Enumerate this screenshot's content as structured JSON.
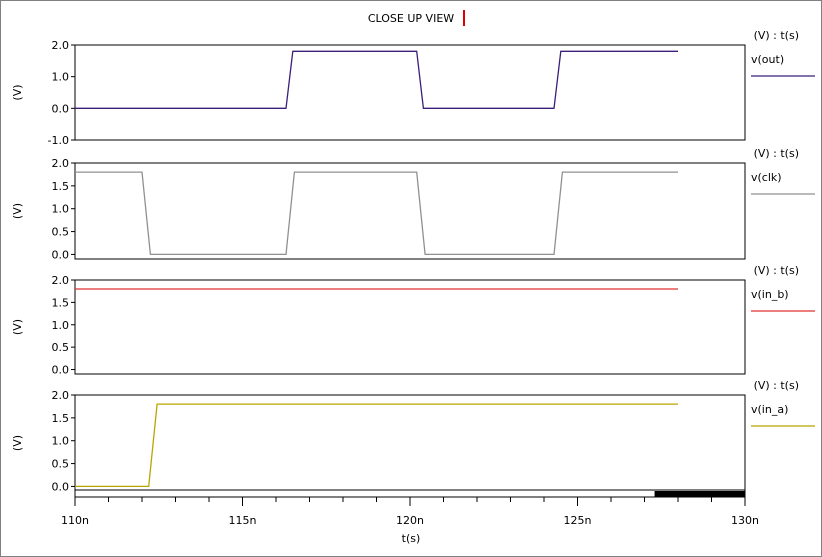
{
  "chart_data": {
    "type": "line",
    "title": "CLOSE UP VIEW",
    "xlabel": "t(s)",
    "x_ticks": [
      "110n",
      "115n",
      "120n",
      "125n",
      "130n"
    ],
    "x_tick_values": [
      110,
      115,
      120,
      125,
      130
    ],
    "xlim": [
      110,
      130
    ],
    "grid": false,
    "panels": [
      {
        "ylabel": "(V)",
        "unit_label": "(V) : t(s)",
        "series": [
          {
            "name": "v(out)",
            "color": "#3b1f7a",
            "x": [
              110,
              116.3,
              116.5,
              120.2,
              120.4,
              124.3,
              124.5,
              128
            ],
            "y": [
              0.0,
              0.0,
              1.8,
              1.8,
              0.0,
              0.0,
              1.8,
              1.8
            ]
          }
        ],
        "ylim": [
          -1.0,
          2.0
        ],
        "y_ticks": [
          -1.0,
          0.0,
          1.0,
          2.0
        ],
        "y_tick_labels": [
          "-1.0",
          "0.0",
          "1.0",
          "2.0"
        ]
      },
      {
        "ylabel": "(V)",
        "unit_label": "(V) : t(s)",
        "series": [
          {
            "name": "v(clk)",
            "color": "#909090",
            "x": [
              110,
              112,
              112.25,
              116.3,
              116.55,
              120.2,
              120.45,
              124.3,
              124.55,
              128
            ],
            "y": [
              1.8,
              1.8,
              0.0,
              0.0,
              1.8,
              1.8,
              0.0,
              0.0,
              1.8,
              1.8
            ]
          }
        ],
        "ylim": [
          -0.1,
          2.0
        ],
        "y_ticks": [
          0.0,
          0.5,
          1.0,
          1.5,
          2.0
        ],
        "y_tick_labels": [
          "0.0",
          "0.5",
          "1.0",
          "1.5",
          "2.0"
        ]
      },
      {
        "ylabel": "(V)",
        "unit_label": "(V) : t(s)",
        "series": [
          {
            "name": "v(in_b)",
            "color": "#e03030",
            "x": [
              110,
              128
            ],
            "y": [
              1.8,
              1.8
            ]
          }
        ],
        "ylim": [
          -0.1,
          2.0
        ],
        "y_ticks": [
          0.0,
          0.5,
          1.0,
          1.5,
          2.0
        ],
        "y_tick_labels": [
          "0.0",
          "0.5",
          "1.0",
          "1.5",
          "2.0"
        ]
      },
      {
        "ylabel": "(V)",
        "unit_label": "(V) : t(s)",
        "series": [
          {
            "name": "v(in_a)",
            "color": "#b8a400",
            "x": [
              110,
              112.2,
              112.45,
              128
            ],
            "y": [
              0.0,
              0.0,
              1.8,
              1.8
            ]
          }
        ],
        "ylim": [
          -0.1,
          2.0
        ],
        "y_ticks": [
          0.0,
          0.5,
          1.0,
          1.5,
          2.0
        ],
        "y_tick_labels": [
          "0.0",
          "0.5",
          "1.0",
          "1.5",
          "2.0"
        ]
      }
    ],
    "scrollbar": {
      "visible_start": 127.3,
      "visible_end": 130
    }
  }
}
